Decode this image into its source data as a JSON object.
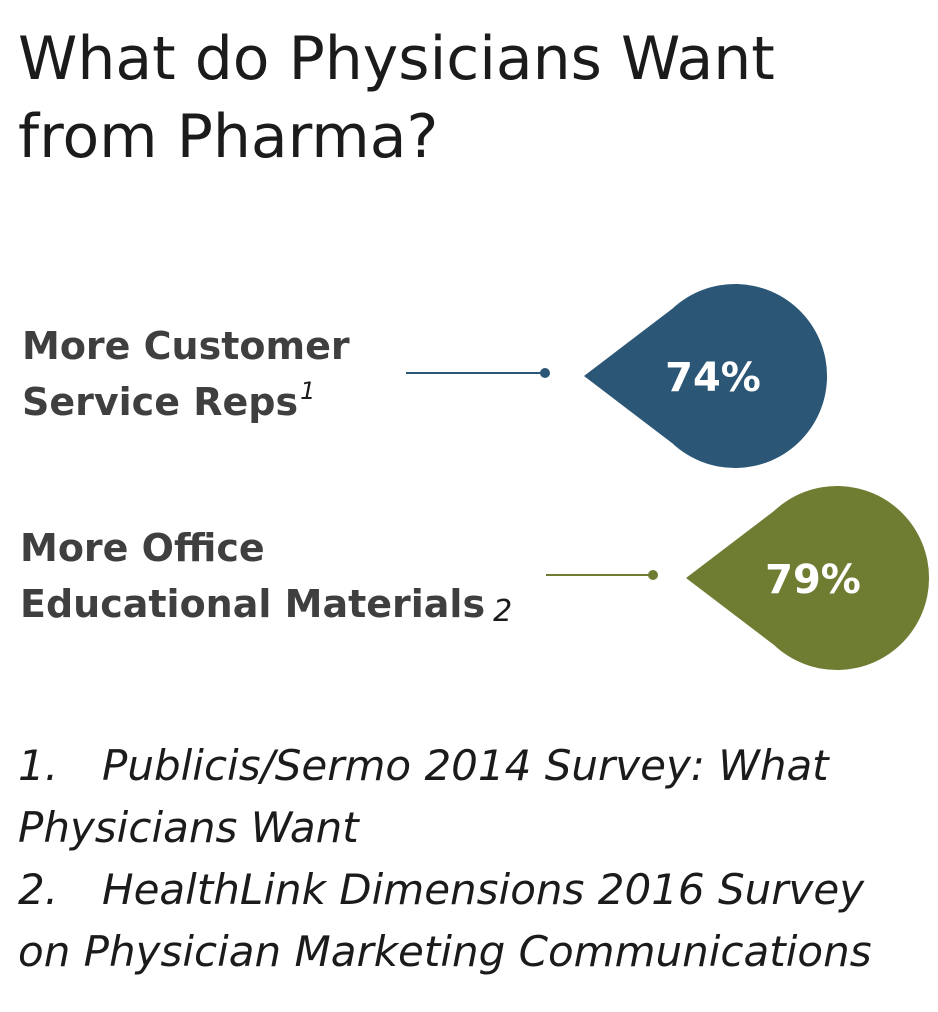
{
  "title": {
    "line1": "What do Physicians Want",
    "line2": "from Pharma?"
  },
  "stats": [
    {
      "label_line1": "More Customer",
      "label_line2": "Service Reps",
      "ref": "1",
      "value": "74%",
      "color": "#2b5676"
    },
    {
      "label_line1": "More Office",
      "label_line2": "Educational Materials",
      "ref": "2",
      "value": "79%",
      "color": "#6f7d33"
    }
  ],
  "footnotes": [
    {
      "num": "1.",
      "text": "Publicis/Sermo 2014 Survey: What Physicians Want"
    },
    {
      "num": "2.",
      "text": "HealthLink Dimensions 2016 Survey on Physician Marketing Communications"
    }
  ]
}
